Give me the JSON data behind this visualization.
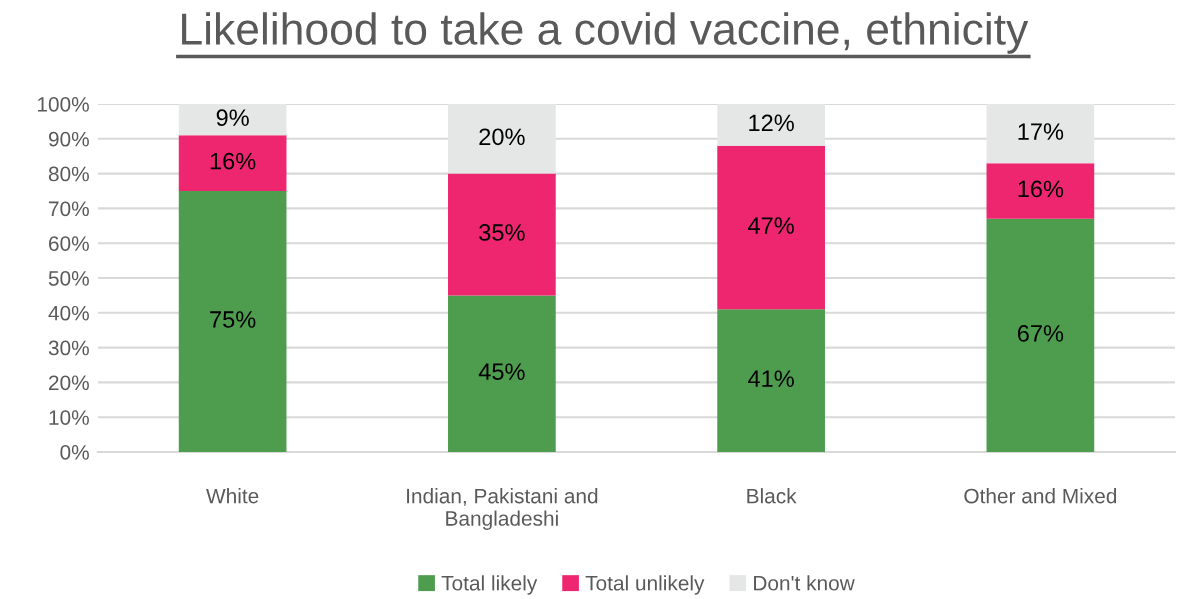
{
  "chart_data": {
    "type": "bar",
    "title": "Likelihood to take a covid vaccine, ethnicity",
    "categories": [
      "White",
      "Indian, Pakistani and\nBangladeshi",
      "Black",
      "Other and Mixed"
    ],
    "stacked": true,
    "series": [
      {
        "name": "Total likely",
        "color": "#4e9c4e",
        "values": [
          75,
          45,
          41,
          67
        ],
        "value_labels": [
          "75%",
          "45%",
          "41%",
          "67%"
        ]
      },
      {
        "name": "Total unlikely",
        "color": "#ee2670",
        "values": [
          16,
          35,
          47,
          16
        ],
        "value_labels": [
          "16%",
          "35%",
          "47%",
          "16%"
        ]
      },
      {
        "name": "Don't know",
        "color": "#e5e6e6",
        "values": [
          9,
          20,
          12,
          17
        ],
        "value_labels": [
          "9%",
          "20%",
          "12%",
          "17%"
        ]
      }
    ],
    "ylim": [
      0,
      100
    ],
    "yticks": [
      {
        "value": 0,
        "label": "0%"
      },
      {
        "value": 10,
        "label": "10%"
      },
      {
        "value": 20,
        "label": "20%"
      },
      {
        "value": 30,
        "label": "30%"
      },
      {
        "value": 40,
        "label": "40%"
      },
      {
        "value": 50,
        "label": "50%"
      },
      {
        "value": 60,
        "label": "60%"
      },
      {
        "value": 70,
        "label": "70%"
      },
      {
        "value": 80,
        "label": "80%"
      },
      {
        "value": 90,
        "label": "90%"
      },
      {
        "value": 100,
        "label": "100%"
      }
    ],
    "grid": "y",
    "legend": "bottom"
  }
}
